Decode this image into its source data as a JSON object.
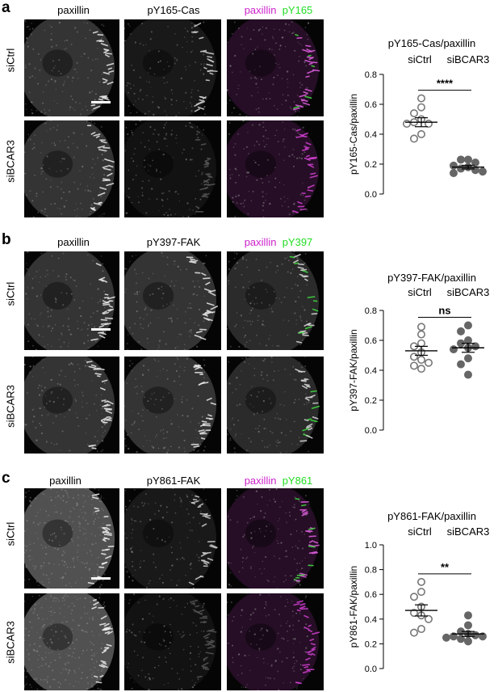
{
  "panels": [
    {
      "letter": "a",
      "columns": [
        "paxillin",
        "pY165-Cas"
      ],
      "merge": {
        "red": "paxillin",
        "green": "pY165"
      },
      "rows": [
        "siCtrl",
        "siBCAR3"
      ],
      "plot": {
        "title": "pY165-Cas/paxillin",
        "groups": [
          "siCtrl",
          "siBCAR3"
        ],
        "ylabel": "pY165-Cas/paxillin",
        "significance": "****"
      }
    },
    {
      "letter": "b",
      "columns": [
        "paxillin",
        "pY397-FAK"
      ],
      "merge": {
        "red": "paxillin",
        "green": "pY397"
      },
      "rows": [
        "siCtrl",
        "siBCAR3"
      ],
      "plot": {
        "title": "pY397-FAK/paxillin",
        "groups": [
          "siCtrl",
          "siBCAR3"
        ],
        "ylabel": "pY397-FAK/paxillin",
        "significance": "ns"
      }
    },
    {
      "letter": "c",
      "columns": [
        "paxillin",
        "pY861-FAK"
      ],
      "merge": {
        "red": "paxillin",
        "green": "pY861"
      },
      "rows": [
        "siCtrl",
        "siBCAR3"
      ],
      "plot": {
        "title": "pY861-FAK/paxillin",
        "groups": [
          "siCtrl",
          "siBCAR3"
        ],
        "ylabel": "pY861-FAK/paxillin",
        "significance": "**"
      }
    }
  ],
  "colors": {
    "paxillin_merge": "#cc22cc",
    "green_merge": "#22dd22",
    "open_marker": "#777777",
    "filled_marker": "#666666"
  },
  "chart_data": [
    {
      "type": "scatter",
      "title": "pY165-Cas/paxillin",
      "ylabel": "pY165-Cas/paxillin",
      "categories": [
        "siCtrl",
        "siBCAR3"
      ],
      "ylim": [
        0.0,
        0.8
      ],
      "yticks": [
        "0.0",
        "0.2",
        "0.4",
        "0.6",
        "0.8"
      ],
      "series": [
        {
          "name": "siCtrl",
          "marker": "open",
          "values": [
            0.64,
            0.58,
            0.54,
            0.5,
            0.48,
            0.47,
            0.47,
            0.4,
            0.37
          ],
          "mean": 0.48,
          "sem": 0.03
        },
        {
          "name": "siBCAR3",
          "marker": "filled",
          "values": [
            0.23,
            0.23,
            0.21,
            0.19,
            0.18,
            0.17,
            0.16,
            0.15,
            0.14
          ],
          "mean": 0.18,
          "sem": 0.012
        }
      ],
      "significance": "****"
    },
    {
      "type": "scatter",
      "title": "pY397-FAK/paxillin",
      "ylabel": "pY397-FAK/paxillin",
      "categories": [
        "siCtrl",
        "siBCAR3"
      ],
      "ylim": [
        0.0,
        0.8
      ],
      "yticks": [
        "0.0",
        "0.2",
        "0.4",
        "0.6",
        "0.8"
      ],
      "series": [
        {
          "name": "siCtrl",
          "marker": "open",
          "values": [
            0.69,
            0.64,
            0.58,
            0.56,
            0.52,
            0.49,
            0.47,
            0.45,
            0.43,
            0.41
          ],
          "mean": 0.53,
          "sem": 0.03
        },
        {
          "name": "siBCAR3",
          "marker": "filled",
          "values": [
            0.7,
            0.66,
            0.6,
            0.58,
            0.56,
            0.55,
            0.54,
            0.48,
            0.44,
            0.37
          ],
          "mean": 0.55,
          "sem": 0.03
        }
      ],
      "significance": "ns"
    },
    {
      "type": "scatter",
      "title": "pY861-FAK/paxillin",
      "ylabel": "pY861-FAK/paxillin",
      "categories": [
        "siCtrl",
        "siBCAR3"
      ],
      "ylim": [
        0.0,
        1.0
      ],
      "yticks": [
        "0.0",
        "0.2",
        "0.4",
        "0.6",
        "0.8",
        "1.0"
      ],
      "series": [
        {
          "name": "siCtrl",
          "marker": "open",
          "values": [
            0.7,
            0.62,
            0.58,
            0.5,
            0.45,
            0.43,
            0.4,
            0.32,
            0.29
          ],
          "mean": 0.47,
          "sem": 0.045
        },
        {
          "name": "siBCAR3",
          "marker": "filled",
          "values": [
            0.43,
            0.35,
            0.3,
            0.28,
            0.27,
            0.26,
            0.26,
            0.25,
            0.24,
            0.22
          ],
          "mean": 0.28,
          "sem": 0.02
        }
      ],
      "significance": "**"
    }
  ]
}
